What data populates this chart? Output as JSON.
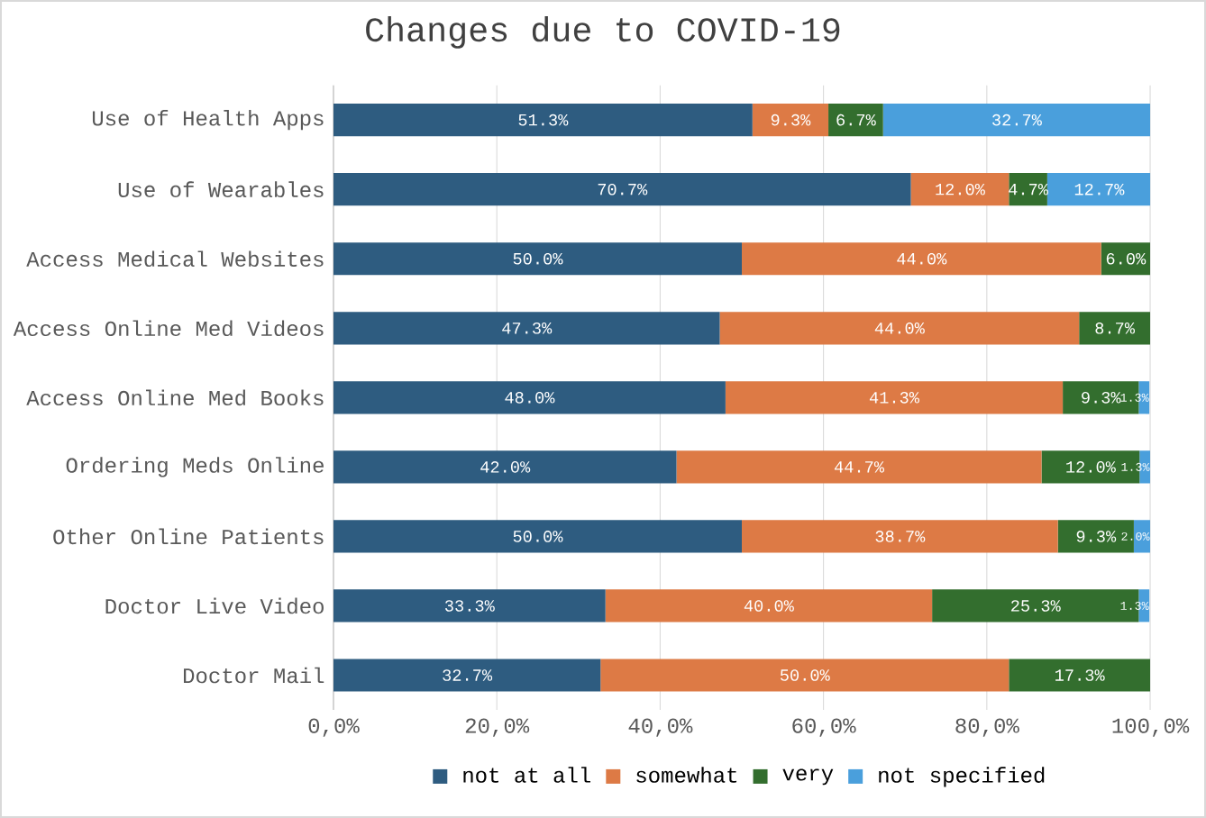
{
  "chart_data": {
    "type": "bar",
    "orientation": "horizontal",
    "stacked": true,
    "title": "Changes due to COVID-19",
    "categories": [
      "Use of Health Apps",
      "Use of Wearables",
      "Access Medical Websites",
      "Access Online Med Videos",
      "Access Online Med Books",
      "Ordering Meds Online",
      "Other Online Patients",
      "Doctor Live Video",
      "Doctor Mail"
    ],
    "series": [
      {
        "name": "not at all",
        "color": "#2e5c80",
        "values": [
          51.3,
          70.7,
          50.0,
          47.3,
          48.0,
          42.0,
          50.0,
          33.3,
          32.7
        ],
        "value_labels": [
          "51.3%",
          "70.7%",
          "50.0%",
          "47.3%",
          "48.0%",
          "42.0%",
          "50.0%",
          "33.3%",
          "32.7%"
        ]
      },
      {
        "name": "somewhat",
        "color": "#dd7a45",
        "values": [
          9.3,
          12.0,
          44.0,
          44.0,
          41.3,
          44.7,
          38.7,
          40.0,
          50.0
        ],
        "value_labels": [
          "9.3%",
          "12.0%",
          "44.0%",
          "44.0%",
          "41.3%",
          "44.7%",
          "38.7%",
          "40.0%",
          "50.0%"
        ]
      },
      {
        "name": "very",
        "color": "#336e2e",
        "values": [
          6.7,
          4.7,
          6.0,
          8.7,
          9.3,
          12.0,
          9.3,
          25.3,
          17.3
        ],
        "value_labels": [
          "6.7%",
          "4.7%",
          "6.0%",
          "8.7%",
          "9.3%",
          "12.0%",
          "9.3%",
          "25.3%",
          "17.3%"
        ]
      },
      {
        "name": "not specified",
        "color": "#4a9fdc",
        "values": [
          32.7,
          12.7,
          null,
          null,
          1.3,
          1.3,
          2.0,
          1.3,
          null
        ],
        "value_labels": [
          "32.7%",
          "12.7%",
          null,
          null,
          "1.3%",
          "1.3%",
          "2.0%",
          "1.3%",
          null
        ]
      }
    ],
    "xlim": [
      0,
      100
    ],
    "xticks": [
      {
        "value": 0,
        "label": "0,0%"
      },
      {
        "value": 20,
        "label": "20,0%"
      },
      {
        "value": 40,
        "label": "40,0%"
      },
      {
        "value": 60,
        "label": "60,0%"
      },
      {
        "value": 80,
        "label": "80,0%"
      },
      {
        "value": 100,
        "label": "100,0%"
      }
    ],
    "grid": "x",
    "legend": "bottom",
    "data_labels": true
  }
}
